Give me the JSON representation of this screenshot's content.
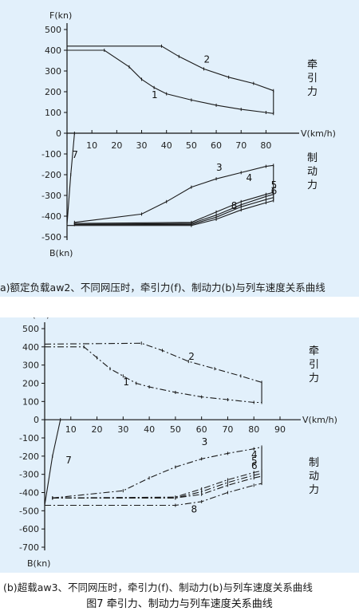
{
  "chart_data": [
    {
      "type": "line",
      "y_axis_label": "F(kn)",
      "y_axis_label_bottom": "B(kn)",
      "x_axis_label": "V(km/h)",
      "y_ticks": [
        "500",
        "400",
        "300",
        "200",
        "100",
        "0",
        "-100",
        "-200",
        "-300",
        "-400",
        "-500"
      ],
      "x_ticks": [
        "10",
        "20",
        "30",
        "40",
        "50",
        "60",
        "70",
        "80"
      ],
      "ylim": [
        -500,
        500
      ],
      "xlim": [
        0,
        85
      ],
      "traction_label": [
        "牵",
        "引",
        "力"
      ],
      "braking_label": [
        "制",
        "动",
        "力"
      ],
      "series": [
        {
          "name": "1",
          "x": [
            0,
            15,
            25,
            30,
            35,
            40,
            50,
            60,
            70,
            80,
            83
          ],
          "y": [
            400,
            400,
            320,
            260,
            220,
            190,
            160,
            135,
            115,
            100,
            95
          ]
        },
        {
          "name": "2",
          "x": [
            0,
            38,
            45,
            55,
            65,
            75,
            83
          ],
          "y": [
            420,
            420,
            370,
            310,
            270,
            240,
            205
          ]
        },
        {
          "name": "3",
          "x": [
            3,
            30,
            40,
            50,
            60,
            70,
            80,
            83
          ],
          "y": [
            -430,
            -390,
            -330,
            -260,
            -220,
            -190,
            -160,
            -155
          ]
        },
        {
          "name": "4",
          "x": [
            3,
            50,
            60,
            70,
            80,
            83
          ],
          "y": [
            -435,
            -430,
            -380,
            -330,
            -295,
            -285
          ]
        },
        {
          "name": "5",
          "x": [
            3,
            50,
            60,
            70,
            80,
            83
          ],
          "y": [
            -440,
            -435,
            -395,
            -345,
            -305,
            -295
          ]
        },
        {
          "name": "6",
          "x": [
            3,
            50,
            60,
            70,
            80,
            83
          ],
          "y": [
            -440,
            -440,
            -405,
            -355,
            -320,
            -310
          ]
        },
        {
          "name": "7",
          "x": [
            0,
            1.5,
            3
          ],
          "y": [
            -440,
            -200,
            0
          ]
        },
        {
          "name": "8",
          "x": [
            0,
            50,
            60,
            70,
            80,
            83
          ],
          "y": [
            -445,
            -445,
            -415,
            -370,
            -335,
            -325
          ]
        }
      ],
      "label_positions_text": [
        "1",
        "2",
        "3",
        "4",
        "5",
        "6",
        "7",
        "8"
      ]
    },
    {
      "type": "line",
      "y_axis_label": "F(kn)",
      "y_axis_label_bottom": "B(kn)",
      "x_axis_label": "V(km/h)",
      "y_ticks": [
        "500",
        "400",
        "300",
        "200",
        "100",
        "0",
        "-100",
        "-200",
        "-300",
        "-400",
        "-500",
        "-600",
        "-700"
      ],
      "x_ticks": [
        "10",
        "20",
        "30",
        "40",
        "50",
        "60",
        "70",
        "80",
        "90"
      ],
      "ylim": [
        -700,
        500
      ],
      "xlim": [
        0,
        90
      ],
      "traction_label": [
        "牵",
        "引",
        "力"
      ],
      "braking_label": [
        "制",
        "动",
        "力"
      ],
      "series": [
        {
          "name": "1",
          "x": [
            0,
            15,
            20,
            25,
            30,
            35,
            40,
            50,
            60,
            70,
            80,
            83
          ],
          "y": [
            400,
            400,
            340,
            280,
            240,
            200,
            180,
            150,
            125,
            110,
            95,
            95
          ]
        },
        {
          "name": "2",
          "x": [
            0,
            37,
            45,
            55,
            65,
            75,
            83
          ],
          "y": [
            415,
            420,
            380,
            320,
            280,
            240,
            205
          ]
        },
        {
          "name": "3",
          "x": [
            3,
            30,
            40,
            50,
            60,
            70,
            80,
            83
          ],
          "y": [
            -430,
            -390,
            -320,
            -260,
            -215,
            -185,
            -160,
            -150
          ]
        },
        {
          "name": "4",
          "x": [
            3,
            50,
            60,
            70,
            80,
            83
          ],
          "y": [
            -430,
            -425,
            -380,
            -330,
            -290,
            -280
          ]
        },
        {
          "name": "5",
          "x": [
            3,
            50,
            60,
            70,
            80,
            83
          ],
          "y": [
            -430,
            -430,
            -395,
            -345,
            -305,
            -295
          ]
        },
        {
          "name": "6",
          "x": [
            3,
            50,
            60,
            70,
            80,
            83
          ],
          "y": [
            -430,
            -430,
            -410,
            -360,
            -320,
            -310
          ]
        },
        {
          "name": "7",
          "x": [
            0,
            3,
            6
          ],
          "y": [
            -470,
            -200,
            0
          ]
        },
        {
          "name": "8",
          "x": [
            0,
            50,
            60,
            70,
            80,
            83
          ],
          "y": [
            -470,
            -470,
            -450,
            -400,
            -360,
            -350
          ]
        }
      ],
      "label_positions_text": [
        "1",
        "2",
        "3",
        "4",
        "5",
        "6",
        "7",
        "8"
      ]
    }
  ],
  "captions": {
    "a": "a)额定负载aw2、不同网压时，牵引力(f)、制动力(b)与列车速度关系曲线",
    "b": "(b)超载aw3、不同网压时，牵引力(f)、制动力(b)与列车速度关系曲线",
    "figure_title": "图7 牵引力、制动力与列车速度关系曲线"
  }
}
